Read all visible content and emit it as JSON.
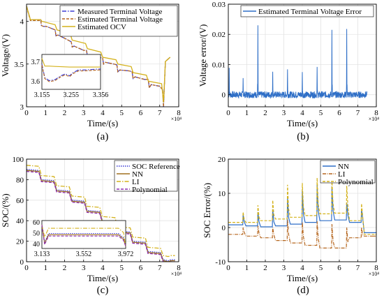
{
  "chart_data": [
    {
      "panel_label": "(a)",
      "type": "line",
      "xlabel": "Time/(s)",
      "ylabel": "Voltage/(V)",
      "x_exponent": "×10⁴",
      "xlim": [
        0,
        8
      ],
      "ylim": [
        3,
        4.2
      ],
      "xticks": [
        "0",
        "1",
        "2",
        "3",
        "4",
        "5",
        "6",
        "7",
        "8"
      ],
      "yticks": [
        "3",
        "3.5",
        "4"
      ],
      "legend": [
        "Measured Terminal Voltage",
        "Estimated Terminal Voltage",
        "Estimated OCV"
      ],
      "series": [
        {
          "name": "Measured Terminal Voltage",
          "color": "#3b3bd4",
          "dash": "6 2 1.5 2",
          "points": [
            [
              0,
              4.18
            ],
            [
              0.2,
              4.02
            ],
            [
              0.75,
              4.02
            ],
            [
              0.78,
              3.95
            ],
            [
              0.9,
              3.94
            ],
            [
              1.05,
              3.94
            ],
            [
              1.5,
              3.9
            ],
            [
              1.55,
              3.83
            ],
            [
              1.65,
              3.84
            ],
            [
              2.1,
              3.79
            ],
            [
              2.35,
              3.76
            ],
            [
              2.4,
              3.7
            ],
            [
              2.5,
              3.71
            ],
            [
              3.0,
              3.66
            ],
            [
              3.15,
              3.66
            ],
            [
              3.2,
              3.6
            ],
            [
              3.3,
              3.61
            ],
            [
              3.8,
              3.58
            ],
            [
              4.0,
              3.57
            ],
            [
              4.05,
              3.5
            ],
            [
              4.15,
              3.52
            ],
            [
              4.6,
              3.5
            ],
            [
              4.75,
              3.49
            ],
            [
              4.8,
              3.41
            ],
            [
              4.9,
              3.43
            ],
            [
              5.4,
              3.42
            ],
            [
              5.55,
              3.41
            ],
            [
              5.6,
              3.33
            ],
            [
              5.7,
              3.35
            ],
            [
              6.2,
              3.32
            ],
            [
              6.4,
              3.32
            ],
            [
              6.45,
              3.22
            ],
            [
              6.55,
              3.26
            ],
            [
              7.0,
              3.24
            ],
            [
              7.15,
              3.2
            ],
            [
              7.2,
              3.0
            ],
            [
              7.3,
              3.53
            ],
            [
              7.55,
              3.58
            ]
          ]
        },
        {
          "name": "Estimated Terminal Voltage",
          "color": "#b5651d",
          "dash": "4 2",
          "points": [
            [
              0,
              4.17
            ],
            [
              0.2,
              4.01
            ],
            [
              0.75,
              4.01
            ],
            [
              0.78,
              3.95
            ],
            [
              0.9,
              3.94
            ],
            [
              1.05,
              3.94
            ],
            [
              1.5,
              3.9
            ],
            [
              1.55,
              3.83
            ],
            [
              1.65,
              3.84
            ],
            [
              2.1,
              3.79
            ],
            [
              2.35,
              3.76
            ],
            [
              2.4,
              3.7
            ],
            [
              2.5,
              3.71
            ],
            [
              3.0,
              3.66
            ],
            [
              3.15,
              3.66
            ],
            [
              3.2,
              3.6
            ],
            [
              3.3,
              3.61
            ],
            [
              3.8,
              3.58
            ],
            [
              4.0,
              3.57
            ],
            [
              4.05,
              3.5
            ],
            [
              4.15,
              3.52
            ],
            [
              4.6,
              3.5
            ],
            [
              4.75,
              3.49
            ],
            [
              4.8,
              3.41
            ],
            [
              4.9,
              3.43
            ],
            [
              5.4,
              3.42
            ],
            [
              5.55,
              3.41
            ],
            [
              5.6,
              3.33
            ],
            [
              5.7,
              3.35
            ],
            [
              6.2,
              3.32
            ],
            [
              6.4,
              3.32
            ],
            [
              6.45,
              3.22
            ],
            [
              6.55,
              3.26
            ],
            [
              7.0,
              3.24
            ],
            [
              7.15,
              3.2
            ],
            [
              7.2,
              3.0
            ],
            [
              7.3,
              3.53
            ],
            [
              7.55,
              3.58
            ]
          ]
        },
        {
          "name": "Estimated OCV",
          "color": "#d4b21c",
          "dash": "",
          "points": [
            [
              0,
              4.18
            ],
            [
              0.2,
              4.02
            ],
            [
              0.75,
              4.02
            ],
            [
              0.8,
              4.0
            ],
            [
              1.5,
              3.96
            ],
            [
              1.6,
              3.9
            ],
            [
              2.3,
              3.85
            ],
            [
              2.4,
              3.78
            ],
            [
              3.1,
              3.74
            ],
            [
              3.2,
              3.68
            ],
            [
              3.9,
              3.64
            ],
            [
              4.0,
              3.58
            ],
            [
              4.7,
              3.55
            ],
            [
              4.8,
              3.5
            ],
            [
              5.5,
              3.47
            ],
            [
              5.6,
              3.4
            ],
            [
              6.3,
              3.37
            ],
            [
              6.4,
              3.3
            ],
            [
              7.1,
              3.27
            ],
            [
              7.2,
              3.05
            ],
            [
              7.3,
              3.53
            ],
            [
              7.55,
              3.58
            ]
          ]
        }
      ],
      "inset": {
        "xticks": [
          "3.155",
          "3.255",
          "3.356"
        ],
        "yticks": [
          "3.6",
          "3.7"
        ],
        "xlim": [
          3.155,
          3.356
        ],
        "ylim": [
          3.56,
          3.74
        ]
      }
    },
    {
      "panel_label": "(b)",
      "type": "line",
      "xlabel": "Time/(s)",
      "ylabel": "Voltage error/(V)",
      "x_exponent": "×10⁴",
      "xlim": [
        0,
        8
      ],
      "ylim": [
        -0.004,
        0.03
      ],
      "xticks": [
        "0",
        "1",
        "2",
        "3",
        "4",
        "5",
        "6",
        "7",
        "8"
      ],
      "yticks": [
        "0",
        "0.01",
        "0.02",
        "0.03"
      ],
      "legend": [
        "Estimated Terminal Voltage Error"
      ],
      "series": [
        {
          "name": "Estimated Terminal Voltage Error",
          "color": "#2f6fc7",
          "dash": "",
          "spikes": [
            [
              0.05,
              0.0089
            ],
            [
              0.8,
              0.0055
            ],
            [
              1.6,
              0.023
            ],
            [
              2.4,
              0.0076
            ],
            [
              3.2,
              0.0084
            ],
            [
              4.0,
              0.0075
            ],
            [
              4.8,
              0.0092
            ],
            [
              5.6,
              0.0215
            ],
            [
              6.4,
              0.0218
            ]
          ],
          "noise": 0.0011,
          "end": 7.5
        }
      ]
    },
    {
      "panel_label": "(c)",
      "type": "line",
      "xlabel": "Time/(s)",
      "ylabel": "SOC/(%)",
      "x_exponent": "×10⁴",
      "xlim": [
        0,
        8
      ],
      "ylim": [
        0,
        100
      ],
      "xticks": [
        "0",
        "1",
        "2",
        "3",
        "4",
        "5",
        "6",
        "7",
        "8"
      ],
      "yticks": [
        "0",
        "20",
        "40",
        "60",
        "80",
        "100"
      ],
      "legend": [
        "SOC Reference",
        "NN",
        "LI",
        "Polynomial"
      ],
      "series": [
        {
          "name": "SOC Reference",
          "color": "#3b3bd4",
          "dash": "1.5 1.5",
          "offset": 0
        },
        {
          "name": "NN",
          "color": "#a0701e",
          "dash": "",
          "offset": -1
        },
        {
          "name": "LI",
          "color": "#d4b21c",
          "dash": "6 2 1.5 2",
          "offset": 4
        },
        {
          "name": "Polynomial",
          "color": "#8b2bb0",
          "dash": "4 2",
          "offset": -2
        }
      ],
      "steps": [
        [
          0,
          90
        ],
        [
          0.8,
          80
        ],
        [
          1.6,
          70
        ],
        [
          2.4,
          60
        ],
        [
          3.2,
          50
        ],
        [
          4.0,
          40
        ],
        [
          4.8,
          30
        ],
        [
          5.6,
          20
        ],
        [
          6.4,
          10
        ],
        [
          7.2,
          2
        ],
        [
          7.6,
          2
        ]
      ],
      "inset": {
        "xticks": [
          "3.133",
          "3.552",
          "3.972"
        ],
        "yticks": [
          "40",
          "50",
          "60"
        ],
        "xlim": [
          3.133,
          3.972
        ],
        "ylim": [
          36,
          62
        ]
      }
    },
    {
      "panel_label": "(d)",
      "type": "line",
      "xlabel": "Time/(s)",
      "ylabel": "SOC Error/(%)",
      "x_exponent": "×10⁴",
      "xlim": [
        0,
        8
      ],
      "ylim": [
        -10,
        20
      ],
      "xticks": [
        "0",
        "1",
        "2",
        "3",
        "4",
        "5",
        "6",
        "7",
        "8"
      ],
      "yticks": [
        "-10",
        "0",
        "10",
        "20"
      ],
      "legend": [
        "NN",
        "LI",
        "Polynomial"
      ],
      "series": [
        {
          "name": "NN",
          "color": "#2f6fc7",
          "dash": "",
          "base": [
            0.8,
            0.5,
            0.2,
            0.5,
            1.0,
            1.5,
            2.0,
            2.2,
            1.5,
            -1.5
          ],
          "spike": [
            3,
            4,
            5,
            8,
            10,
            11,
            10,
            5,
            4,
            0
          ]
        },
        {
          "name": "LI",
          "color": "#b5651d",
          "dash": "5 1.5 1 1.5",
          "base": [
            -2,
            -2.5,
            -3,
            -3.8,
            -4.5,
            -5.2,
            -6,
            -6,
            -3,
            -2.5
          ],
          "spike": [
            2,
            3,
            3,
            6,
            6,
            7,
            7,
            6,
            3,
            0
          ]
        },
        {
          "name": "Polynomial",
          "color": "#d4b21c",
          "dash": "4 2",
          "base": [
            1.5,
            1.5,
            2,
            2.5,
            3,
            3.5,
            4,
            4.2,
            2,
            -2
          ],
          "spike": [
            3,
            5,
            6,
            10,
            10,
            11,
            10,
            8,
            5,
            0
          ]
        }
      ]
    }
  ]
}
